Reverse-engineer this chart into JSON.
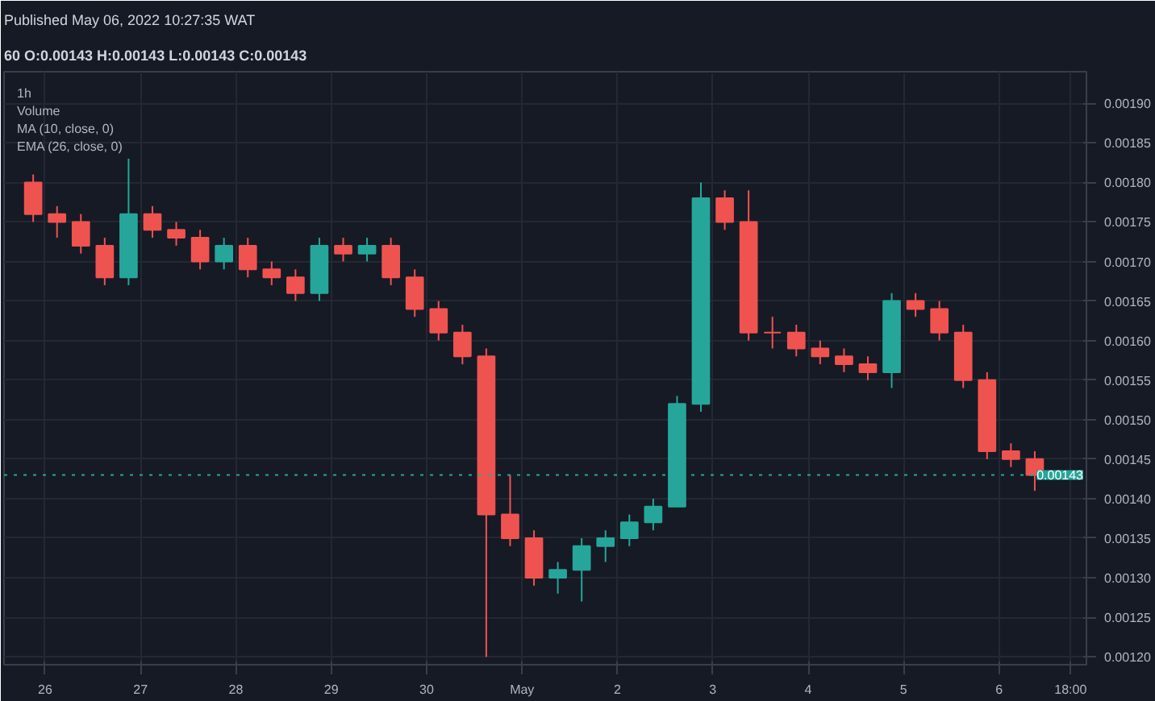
{
  "chart_data": {
    "type": "candlestick",
    "title": "Published May 06, 2022 10:27:35 WAT",
    "subtitle": "60 O:0.00143 H:0.00143 L:0.00143 C:0.00143",
    "annotations": [
      "1h",
      "Volume",
      "MA (10, close, 0)",
      "EMA (26, close, 0)"
    ],
    "x": [
      "2022-04-25T21:00",
      "2022-04-26T03:00",
      "2022-04-26T09:00",
      "2022-04-26T15:00",
      "2022-04-26T21:00",
      "2022-04-27T03:00",
      "2022-04-27T09:00",
      "2022-04-27T15:00",
      "2022-04-27T21:00",
      "2022-04-28T03:00",
      "2022-04-28T09:00",
      "2022-04-28T15:00",
      "2022-04-28T21:00",
      "2022-04-29T03:00",
      "2022-04-29T09:00",
      "2022-04-29T15:00",
      "2022-04-29T21:00",
      "2022-04-30T03:00",
      "2022-04-30T09:00",
      "2022-04-30T15:00",
      "2022-04-30T21:00",
      "2022-05-01T03:00",
      "2022-05-01T09:00",
      "2022-05-01T15:00",
      "2022-05-01T21:00",
      "2022-05-02T03:00",
      "2022-05-02T09:00",
      "2022-05-02T15:00",
      "2022-05-02T21:00",
      "2022-05-03T03:00",
      "2022-05-03T09:00",
      "2022-05-03T15:00",
      "2022-05-03T21:00",
      "2022-05-04T03:00",
      "2022-05-04T09:00",
      "2022-05-04T15:00",
      "2022-05-04T21:00",
      "2022-05-05T03:00",
      "2022-05-05T09:00",
      "2022-05-05T15:00",
      "2022-05-05T21:00",
      "2022-05-06T03:00",
      "2022-05-06T09:00"
    ],
    "ohlc": [
      [
        0.0018,
        0.00181,
        0.00175,
        0.00176
      ],
      [
        0.00176,
        0.00177,
        0.00173,
        0.00175
      ],
      [
        0.00175,
        0.00176,
        0.00171,
        0.00172
      ],
      [
        0.00172,
        0.00173,
        0.00167,
        0.00168
      ],
      [
        0.00168,
        0.00183,
        0.00167,
        0.00176
      ],
      [
        0.00176,
        0.00177,
        0.00173,
        0.00174
      ],
      [
        0.00174,
        0.00175,
        0.00172,
        0.00173
      ],
      [
        0.00173,
        0.00174,
        0.00169,
        0.0017
      ],
      [
        0.0017,
        0.00173,
        0.00169,
        0.00172
      ],
      [
        0.00172,
        0.00173,
        0.00168,
        0.00169
      ],
      [
        0.00169,
        0.0017,
        0.00167,
        0.00168
      ],
      [
        0.00168,
        0.00169,
        0.00165,
        0.00166
      ],
      [
        0.00166,
        0.00173,
        0.00165,
        0.00172
      ],
      [
        0.00172,
        0.00173,
        0.0017,
        0.00171
      ],
      [
        0.00171,
        0.00173,
        0.0017,
        0.00172
      ],
      [
        0.00172,
        0.00173,
        0.00167,
        0.00168
      ],
      [
        0.00168,
        0.00169,
        0.00163,
        0.00164
      ],
      [
        0.00164,
        0.00165,
        0.0016,
        0.00161
      ],
      [
        0.00161,
        0.00162,
        0.00157,
        0.00158
      ],
      [
        0.00158,
        0.00159,
        0.0012,
        0.00138
      ],
      [
        0.00138,
        0.00143,
        0.00134,
        0.00135
      ],
      [
        0.00135,
        0.00136,
        0.00129,
        0.0013
      ],
      [
        0.0013,
        0.00132,
        0.00128,
        0.00131
      ],
      [
        0.00131,
        0.00135,
        0.00127,
        0.00134
      ],
      [
        0.00134,
        0.00136,
        0.00132,
        0.00135
      ],
      [
        0.00135,
        0.00138,
        0.00134,
        0.00137
      ],
      [
        0.00137,
        0.0014,
        0.00136,
        0.00139
      ],
      [
        0.00139,
        0.00153,
        0.00139,
        0.00152
      ],
      [
        0.00152,
        0.0018,
        0.00151,
        0.00178
      ],
      [
        0.00178,
        0.00179,
        0.00174,
        0.00175
      ],
      [
        0.00175,
        0.00179,
        0.0016,
        0.00161
      ],
      [
        0.00161,
        0.00163,
        0.00159,
        0.00161
      ],
      [
        0.00161,
        0.00162,
        0.00158,
        0.00159
      ],
      [
        0.00159,
        0.0016,
        0.00157,
        0.00158
      ],
      [
        0.00158,
        0.00159,
        0.00156,
        0.00157
      ],
      [
        0.00157,
        0.00158,
        0.00155,
        0.00156
      ],
      [
        0.00156,
        0.00166,
        0.00154,
        0.00165
      ],
      [
        0.00165,
        0.00166,
        0.00163,
        0.00164
      ],
      [
        0.00164,
        0.00165,
        0.0016,
        0.00161
      ],
      [
        0.00161,
        0.00162,
        0.00154,
        0.00155
      ],
      [
        0.00155,
        0.00156,
        0.00145,
        0.00146
      ],
      [
        0.00146,
        0.00147,
        0.00144,
        0.00145
      ],
      [
        0.00145,
        0.00146,
        0.00141,
        0.00143
      ]
    ],
    "colors": [
      "#ef5350",
      "#ef5350",
      "#ef5350",
      "#ef5350",
      "#26a69a",
      "#ef5350",
      "#ef5350",
      "#ef5350",
      "#26a69a",
      "#ef5350",
      "#ef5350",
      "#ef5350",
      "#26a69a",
      "#ef5350",
      "#26a69a",
      "#ef5350",
      "#ef5350",
      "#ef5350",
      "#ef5350",
      "#ef5350",
      "#ef5350",
      "#ef5350",
      "#26a69a",
      "#26a69a",
      "#26a69a",
      "#26a69a",
      "#26a69a",
      "#26a69a",
      "#26a69a",
      "#ef5350",
      "#ef5350",
      "#ef5350",
      "#ef5350",
      "#ef5350",
      "#ef5350",
      "#ef5350",
      "#26a69a",
      "#ef5350",
      "#ef5350",
      "#ef5350",
      "#ef5350",
      "#ef5350",
      "#ef5350"
    ],
    "xlim": [
      "2022-04-25T13:40",
      "2022-05-06T22:00"
    ],
    "xticks": [
      {
        "value": "2022-04-26",
        "label": "26"
      },
      {
        "value": "2022-04-27",
        "label": "27"
      },
      {
        "value": "2022-04-28",
        "label": "28"
      },
      {
        "value": "2022-04-29",
        "label": "29"
      },
      {
        "value": "2022-04-30",
        "label": "30"
      },
      {
        "value": "2022-05-01",
        "label": "May"
      },
      {
        "value": "2022-05-02",
        "label": "2"
      },
      {
        "value": "2022-05-03",
        "label": "3"
      },
      {
        "value": "2022-05-04",
        "label": "4"
      },
      {
        "value": "2022-05-05",
        "label": "5"
      },
      {
        "value": "2022-05-06",
        "label": "6"
      },
      {
        "value": "2022-05-06T18:00",
        "label": "18:00"
      }
    ],
    "ylim": [
      0.00119,
      0.00194
    ],
    "yticks": [
      {
        "value": 0.0012,
        "label": "0.00120"
      },
      {
        "value": 0.00125,
        "label": "0.00125"
      },
      {
        "value": 0.0013,
        "label": "0.00130"
      },
      {
        "value": 0.00135,
        "label": "0.00135"
      },
      {
        "value": 0.0014,
        "label": "0.00140"
      },
      {
        "value": 0.00145,
        "label": "0.00145"
      },
      {
        "value": 0.0015,
        "label": "0.00150"
      },
      {
        "value": 0.00155,
        "label": "0.00155"
      },
      {
        "value": 0.0016,
        "label": "0.00160"
      },
      {
        "value": 0.00165,
        "label": "0.00165"
      },
      {
        "value": 0.0017,
        "label": "0.00170"
      },
      {
        "value": 0.00175,
        "label": "0.00175"
      },
      {
        "value": 0.0018,
        "label": "0.00180"
      },
      {
        "value": 0.00185,
        "label": "0.00185"
      },
      {
        "value": 0.0019,
        "label": "0.00190"
      }
    ],
    "ref_lines": [
      {
        "axis": "y",
        "value": 0.00143,
        "label": "0.00143",
        "color": "#26a69a",
        "line_style": "dotted"
      }
    ],
    "grid": true
  }
}
